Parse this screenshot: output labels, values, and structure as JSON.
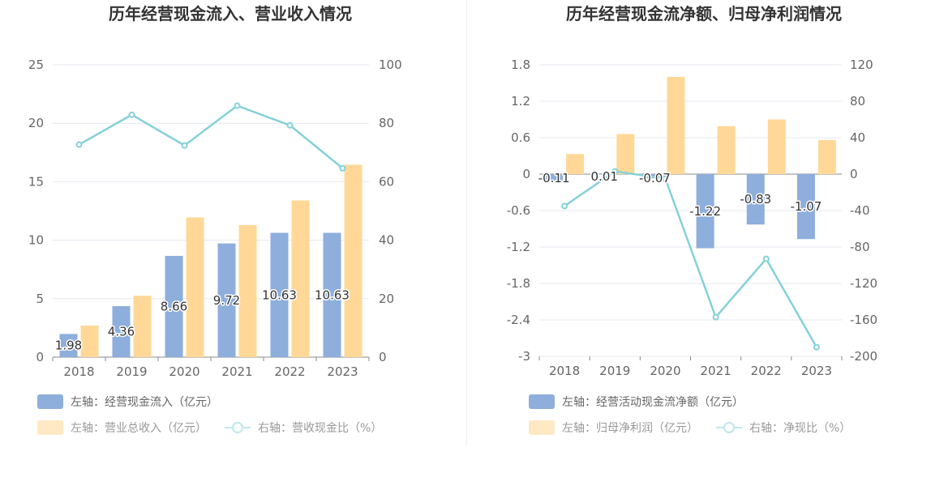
{
  "chart_data": [
    {
      "type": "bar",
      "title": "历年经营现金流入、营业收入情况",
      "categories": [
        "2018",
        "2019",
        "2020",
        "2021",
        "2022",
        "2023"
      ],
      "left_axis": {
        "ylim": [
          0,
          25
        ],
        "ticks": [
          "0",
          "5",
          "10",
          "15",
          "20",
          "25"
        ]
      },
      "right_axis": {
        "ylim": [
          0,
          100
        ],
        "ticks": [
          "0",
          "20",
          "40",
          "60",
          "80",
          "100"
        ]
      },
      "series": [
        {
          "name": "左轴：经营现金流入（亿元）",
          "type": "bar",
          "axis": "left",
          "color": "#8eaedc",
          "values": [
            1.98,
            4.36,
            8.66,
            9.72,
            10.63,
            10.63
          ],
          "labels": [
            "1.98",
            "4.36",
            "8.66",
            "9.72",
            "10.63",
            "10.63"
          ]
        },
        {
          "name": "左轴：营业总收入（亿元）",
          "type": "bar",
          "axis": "left",
          "color": "#ffd898",
          "legend_faded": true,
          "values": [
            2.7,
            5.25,
            11.95,
            11.3,
            13.4,
            16.45
          ]
        },
        {
          "name": "右轴：营收现金比（%）",
          "type": "line",
          "axis": "right",
          "color": "#85d1d9",
          "values": [
            72.7,
            82.9,
            72.4,
            86.0,
            79.3,
            64.6
          ]
        }
      ],
      "grid": true
    },
    {
      "type": "bar",
      "title": "历年经营现金流净额、归母净利润情况",
      "categories": [
        "2018",
        "2019",
        "2020",
        "2021",
        "2022",
        "2023"
      ],
      "left_axis": {
        "ylim": [
          -3,
          1.8
        ],
        "ticks": [
          "1.8",
          "1.2",
          "0.6",
          "0",
          "-0.6",
          "-1.2",
          "-1.8",
          "-2.4",
          "-3"
        ]
      },
      "right_axis": {
        "ylim": [
          -200,
          120
        ],
        "ticks": [
          "120",
          "80",
          "40",
          "0",
          "-40",
          "-80",
          "-120",
          "-160",
          "-200"
        ]
      },
      "series": [
        {
          "name": "左轴：经营活动现金流净额（亿元）",
          "type": "bar",
          "axis": "left",
          "color": "#8eaedc",
          "values": [
            -0.11,
            0.01,
            -0.07,
            -1.22,
            -0.83,
            -1.07
          ],
          "labels": [
            "-0.11",
            "0.01",
            "-0.07",
            "-1.22",
            "-0.83",
            "-1.07"
          ]
        },
        {
          "name": "左轴：归母净利润（亿元）",
          "type": "bar",
          "axis": "left",
          "color": "#ffd898",
          "legend_faded": true,
          "values": [
            0.33,
            0.66,
            1.6,
            0.79,
            0.9,
            0.56
          ]
        },
        {
          "name": "右轴：净现比（%）",
          "type": "line",
          "axis": "right",
          "color": "#85d1d9",
          "values": [
            -35,
            3,
            -5,
            -157,
            -93,
            -190
          ]
        }
      ],
      "grid": true
    }
  ]
}
